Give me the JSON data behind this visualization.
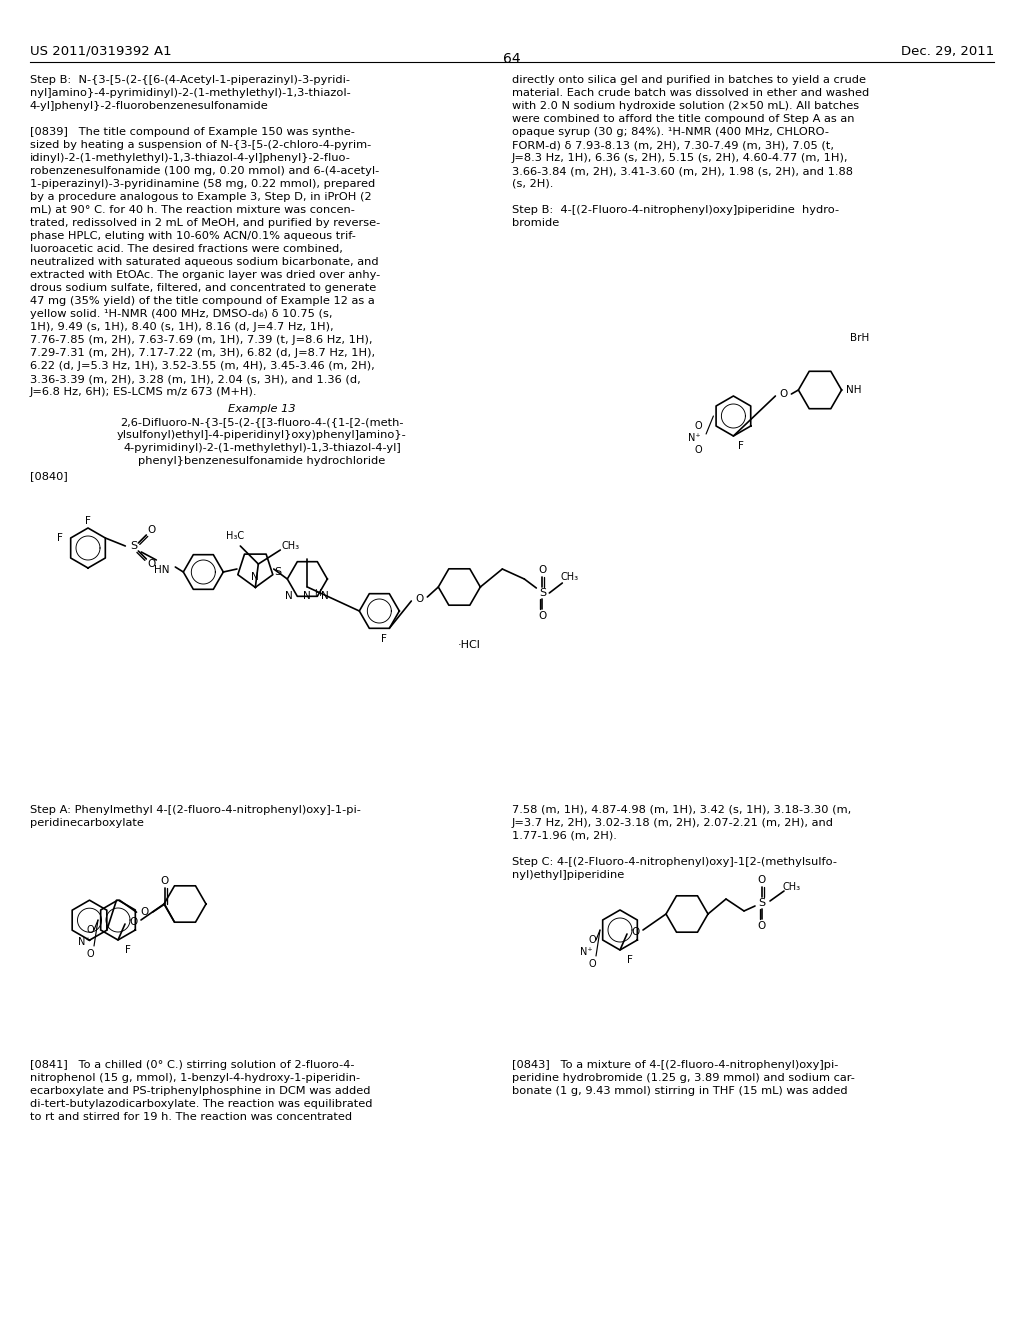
{
  "background_color": "#ffffff",
  "text_color": "#000000",
  "page_header_left": "US 2011/0319392 A1",
  "page_header_right": "Dec. 29, 2011",
  "page_number": "64"
}
